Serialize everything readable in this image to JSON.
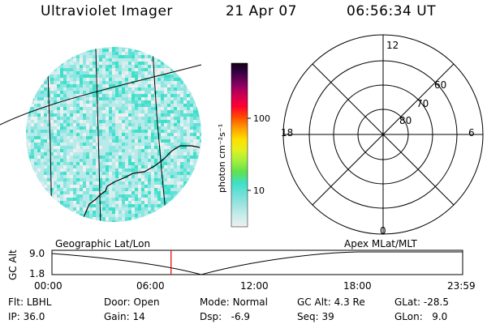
{
  "header": {
    "instrument": "Ultraviolet Imager",
    "date": "21 Apr 07",
    "time": "06:56:34 UT"
  },
  "image_panel": {
    "label": "Geographic Lat/Lon"
  },
  "colorbar": {
    "unit_label": "photon cm⁻²s⁻¹",
    "ticks": [
      "100",
      "10"
    ],
    "colors": [
      "#eef0f0",
      "#c8ecec",
      "#a0e4e0",
      "#6fe0d8",
      "#3de0c8",
      "#60e050",
      "#a0f040",
      "#e0f020",
      "#ffe000",
      "#ffa000",
      "#ff5000",
      "#ff0030",
      "#d00050",
      "#8a0060",
      "#40004a",
      "#100018"
    ]
  },
  "polar_panel": {
    "label": "Apex MLat/MLT",
    "mlt_labels": {
      "top": "12",
      "bottom": "0",
      "left": "18",
      "right": "6"
    },
    "mlat_labels": [
      "60",
      "70",
      "80"
    ]
  },
  "timeline": {
    "y_axis_label": "GC Alt",
    "y_ticks": [
      "9.0",
      "1.8"
    ],
    "x_ticks": [
      "00:00",
      "06:00",
      "12:00",
      "18:00",
      "23:59"
    ],
    "current_fraction": 0.29
  },
  "status": {
    "row1": [
      {
        "key": "Flt:",
        "value": "LBHL"
      },
      {
        "key": "Door:",
        "value": "Open"
      },
      {
        "key": "Mode:",
        "value": "Normal"
      },
      {
        "key": "GC Alt:",
        "value": "4.3 Re"
      },
      {
        "key": "GLat:",
        "value": "-28.5"
      }
    ],
    "row2": [
      {
        "key": "IP:",
        "value": "36.0"
      },
      {
        "key": "Gain:",
        "value": "14"
      },
      {
        "key": "Dsp:",
        "value": "  -6.9"
      },
      {
        "key": "Seq:",
        "value": "39"
      },
      {
        "key": "GLon:",
        "value": "  9.0"
      }
    ]
  }
}
